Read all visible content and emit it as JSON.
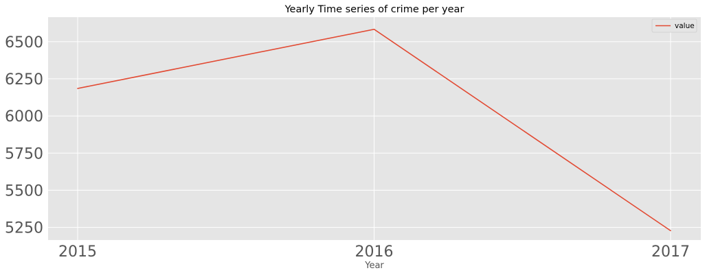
{
  "chart_data": {
    "type": "line",
    "title": "Yearly Time series of crime per year",
    "xlabel": "Year",
    "ylabel": "",
    "categories": [
      "2015",
      "2016",
      "2017"
    ],
    "series": [
      {
        "name": "value",
        "values": [
          6185,
          6583,
          5228
        ],
        "color": "#E24A33"
      }
    ],
    "yticks": [
      5250,
      5500,
      5750,
      6000,
      6250,
      6500
    ],
    "ylim": [
      5165,
      6665
    ],
    "grid": true,
    "legend_position": "top-right",
    "style": {
      "axes_background": "#E5E5E5",
      "grid_color": "#FFFFFF",
      "tick_label_color": "#555555"
    }
  }
}
